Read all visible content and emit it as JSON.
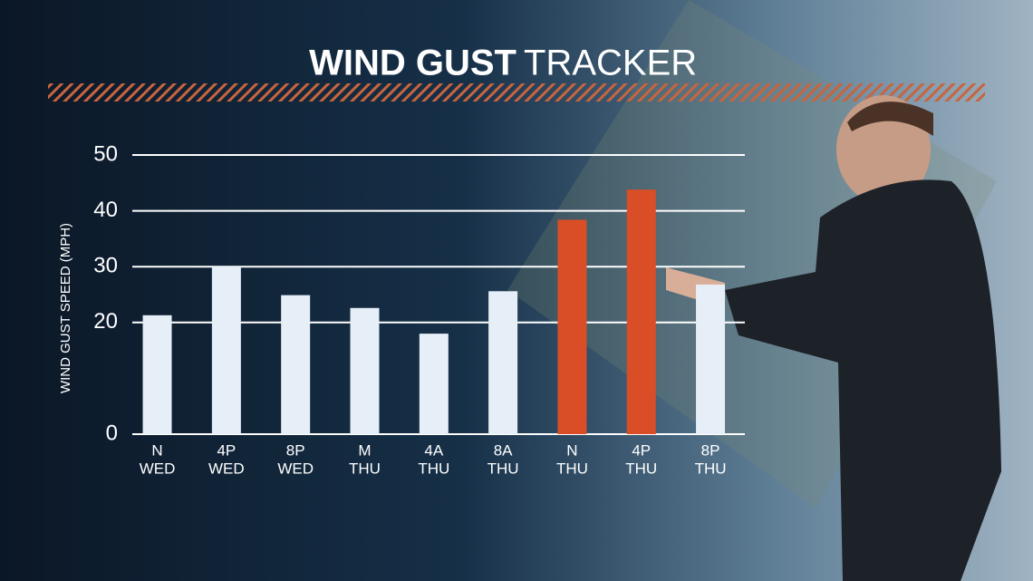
{
  "chart_data": {
    "type": "bar",
    "title": "WIND GUST",
    "title_suffix": "TRACKER",
    "y_label": "WIND GUST SPEED (MPH)",
    "categories": [
      [
        "N",
        "WED"
      ],
      [
        "4P",
        "WED"
      ],
      [
        "8P",
        "WED"
      ],
      [
        "M",
        "THU"
      ],
      [
        "4A",
        "THU"
      ],
      [
        "8A",
        "THU"
      ],
      [
        "N",
        "THU"
      ],
      [
        "4P",
        "THU"
      ],
      [
        "8P",
        "THU"
      ]
    ],
    "values": [
      21.3,
      30,
      24.9,
      22.6,
      18,
      25.6,
      38.4,
      43.8,
      26.8
    ],
    "colors": [
      "#e6eef7",
      "#e6eef7",
      "#e6eef7",
      "#e6eef7",
      "#e6eef7",
      "#e6eef7",
      "#d94e27",
      "#d94e27",
      "#e6eef7"
    ],
    "ylim": [
      0,
      50
    ],
    "yticks": [
      0,
      20,
      30,
      40,
      50
    ],
    "grid": true
  }
}
